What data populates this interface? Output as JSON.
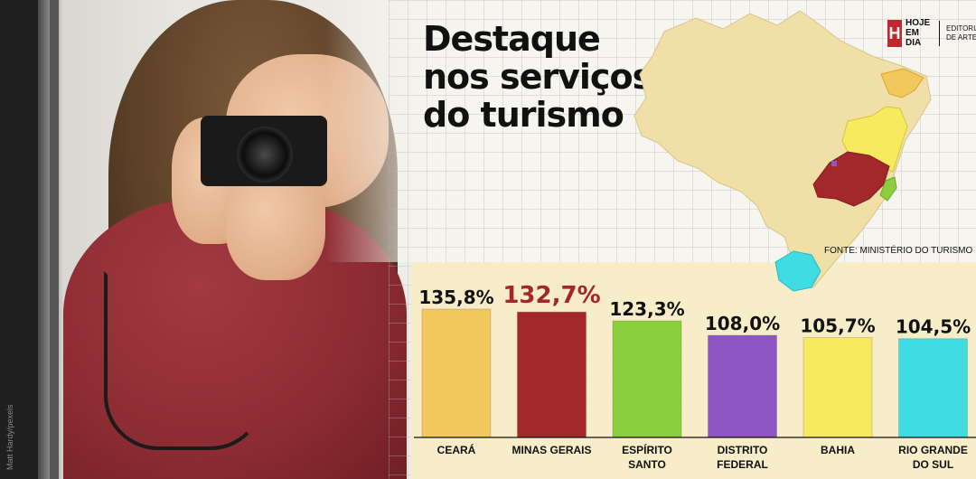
{
  "title": "Destaque nos serviços do turismo",
  "logo": {
    "mark": "H",
    "name": "HOJE EM DIA",
    "sub": "EDITORIA DE ARTE"
  },
  "source": "FONTE: MINISTÉRIO DO TURISMO",
  "photo_credit": "Matt Hardy/pexels",
  "colors": {
    "ceara": "#f2c75c",
    "minas_gerais": "#a2282c",
    "espirito_santo": "#8ccf3d",
    "distrito_federal": "#8e56c4",
    "bahia": "#f7e960",
    "rio_grande_do_sul": "#41dbe4",
    "map_base": "#f1dfa8",
    "highlight_text": "#a2282c"
  },
  "chart_data": {
    "type": "bar",
    "title": "Destaque nos serviços do turismo",
    "categories": [
      "CEARÁ",
      "MINAS GERAIS",
      "ESPÍRITO SANTO",
      "DISTRITO FEDERAL",
      "BAHIA",
      "RIO GRANDE DO SUL"
    ],
    "category_lines": [
      [
        "CEARÁ"
      ],
      [
        "MINAS GERAIS"
      ],
      [
        "ESPÍRITO",
        "SANTO"
      ],
      [
        "DISTRITO",
        "FEDERAL"
      ],
      [
        "BAHIA"
      ],
      [
        "RIO GRANDE",
        "DO SUL"
      ]
    ],
    "values": [
      135.8,
      132.7,
      123.3,
      108.0,
      105.7,
      104.5
    ],
    "value_labels": [
      "135,8%",
      "132,7%",
      "123,3%",
      "108,0%",
      "105,7%",
      "104,5%"
    ],
    "bar_colors": [
      "#f2c75c",
      "#a2282c",
      "#8ccf3d",
      "#8e56c4",
      "#f7e960",
      "#41dbe4"
    ],
    "highlight_index": 1,
    "xlabel": "",
    "ylabel": "",
    "ylim": [
      0,
      135.8
    ],
    "grid": false,
    "legend": "none"
  }
}
